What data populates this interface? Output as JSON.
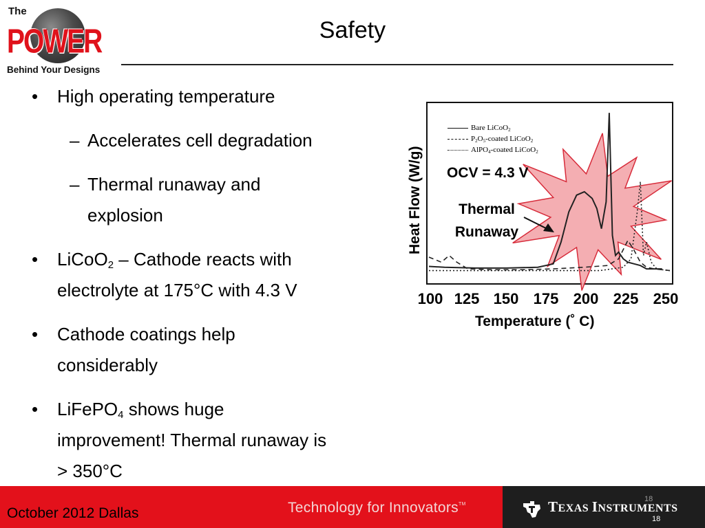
{
  "logo": {
    "top": "The",
    "brand": "POWER",
    "tagline": "Behind Your Designs"
  },
  "slide": {
    "title": "Safety"
  },
  "bullets": {
    "b1": "High operating temperature",
    "b1_sub1": "Accelerates cell degradation",
    "b1_sub2_line1": "Thermal runaway and",
    "b1_sub2_line2": "explosion",
    "b2_pre": "LiCoO",
    "b2_sub": "2",
    "b2_post": " – Cathode reacts with",
    "b2_line2": "electrolyte at 175°C with 4.3 V",
    "b3_line1": "Cathode coatings help",
    "b3_line2": "considerably",
    "b4_pre": "LiFePO",
    "b4_sub": "4",
    "b4_post": " shows huge",
    "b4_line2": "improvement! Thermal runaway is",
    "b4_line3": "> 350°C",
    "bullet_marker": "•",
    "dash_marker": "–"
  },
  "chart_data": {
    "type": "line",
    "title": "",
    "xlabel": "Temperature (˚ C)",
    "ylabel": "Heat Flow (W/g)",
    "x_ticks": [
      "100",
      "125",
      "150",
      "175",
      "200",
      "225",
      "250"
    ],
    "xlim": [
      100,
      255
    ],
    "ylim": [
      0,
      10
    ],
    "grid": false,
    "legend_position": "top-left",
    "legend": [
      {
        "pre": "Bare LiCoO",
        "sub": "2",
        "post": "",
        "style": "solid"
      },
      {
        "pre": "P",
        "sub": "2",
        "mid": "O",
        "sub2": "5",
        "post": "-coated LiCoO",
        "sub3": "2",
        "style": "dashed"
      },
      {
        "pre": "AlPO",
        "sub": "4",
        "post": "-coated LiCoO",
        "sub3": "2",
        "style": "dotted"
      }
    ],
    "annotations": {
      "ocv": "OCV = 4.3 V",
      "runaway_line1": "Thermal",
      "runaway_line2": "Runaway"
    },
    "series": [
      {
        "style": "solid",
        "x": [
          100,
          110,
          130,
          150,
          170,
          180,
          185,
          190,
          195,
          200,
          205,
          208,
          211,
          214,
          216,
          218,
          220,
          222,
          225,
          228,
          232,
          236,
          240,
          250
        ],
        "y": [
          0.35,
          0.3,
          0.25,
          0.25,
          0.3,
          0.5,
          1.8,
          3.6,
          4.6,
          4.8,
          4.4,
          3.8,
          2.6,
          4.2,
          9.5,
          2.2,
          1.0,
          1.2,
          0.8,
          0.6,
          0.5,
          0.4,
          0.2,
          0.2
        ]
      },
      {
        "style": "dashed",
        "x": [
          100,
          108,
          113,
          118,
          125,
          140,
          160,
          180,
          200,
          215,
          222,
          228,
          232,
          236,
          240,
          245,
          250,
          255
        ],
        "y": [
          0.9,
          0.6,
          1.0,
          0.6,
          0.2,
          0.15,
          0.15,
          0.2,
          0.3,
          0.4,
          0.8,
          1.9,
          1.3,
          0.6,
          0.3,
          0.2,
          0.15,
          0.1
        ]
      },
      {
        "style": "dotted",
        "x": [
          100,
          140,
          180,
          210,
          225,
          230,
          234,
          236,
          238,
          240,
          243,
          246,
          250,
          255
        ],
        "y": [
          0.1,
          0.1,
          0.1,
          0.1,
          0.3,
          0.8,
          3.6,
          5.4,
          1.0,
          1.8,
          0.6,
          0.25,
          0.15,
          0.1
        ]
      }
    ],
    "burst_fill": "#f4a8ac",
    "burst_stroke": "#d41a2a"
  },
  "footer": {
    "event": "October 2012  Dallas",
    "tagline": "Technology for Innovators",
    "tm": "TM",
    "ti_brand_a": "T",
    "ti_brand_b": "EXAS ",
    "ti_brand_c": "I",
    "ti_brand_d": "NSTRUMENTS",
    "page_a": "18",
    "page_b": "18",
    "colors": {
      "red": "#e3111b",
      "dark": "#1e1e1e"
    }
  }
}
